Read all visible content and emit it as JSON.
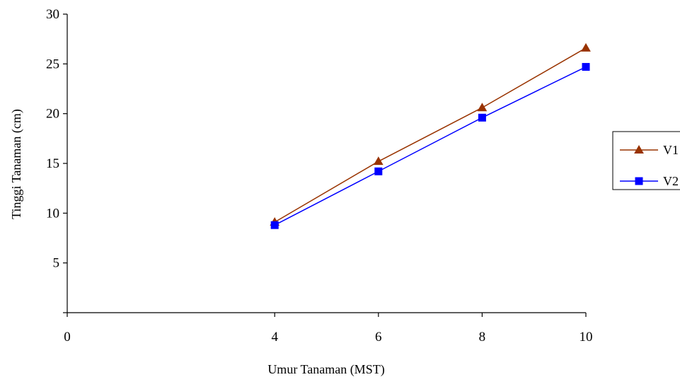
{
  "chart_data": {
    "type": "line",
    "title": "",
    "xlabel": "Umur Tanaman (MST)",
    "ylabel": "Tinggi Tanaman (cm)",
    "xlim": [
      0,
      10
    ],
    "ylim": [
      0,
      30
    ],
    "x_ticks": [
      "0",
      "4",
      "6",
      "8",
      "10"
    ],
    "y_ticks": [
      "5",
      "10",
      "15",
      "20",
      "25",
      "30"
    ],
    "grid": false,
    "legend_position": "right",
    "x": [
      4,
      6,
      8,
      10
    ],
    "series": [
      {
        "name": "V1",
        "values": [
          9.1,
          15.2,
          20.6,
          26.6
        ],
        "color": "#993300",
        "marker": "triangle"
      },
      {
        "name": "V2",
        "values": [
          8.8,
          14.2,
          19.6,
          24.7
        ],
        "color": "#0000FF",
        "marker": "square"
      }
    ]
  }
}
